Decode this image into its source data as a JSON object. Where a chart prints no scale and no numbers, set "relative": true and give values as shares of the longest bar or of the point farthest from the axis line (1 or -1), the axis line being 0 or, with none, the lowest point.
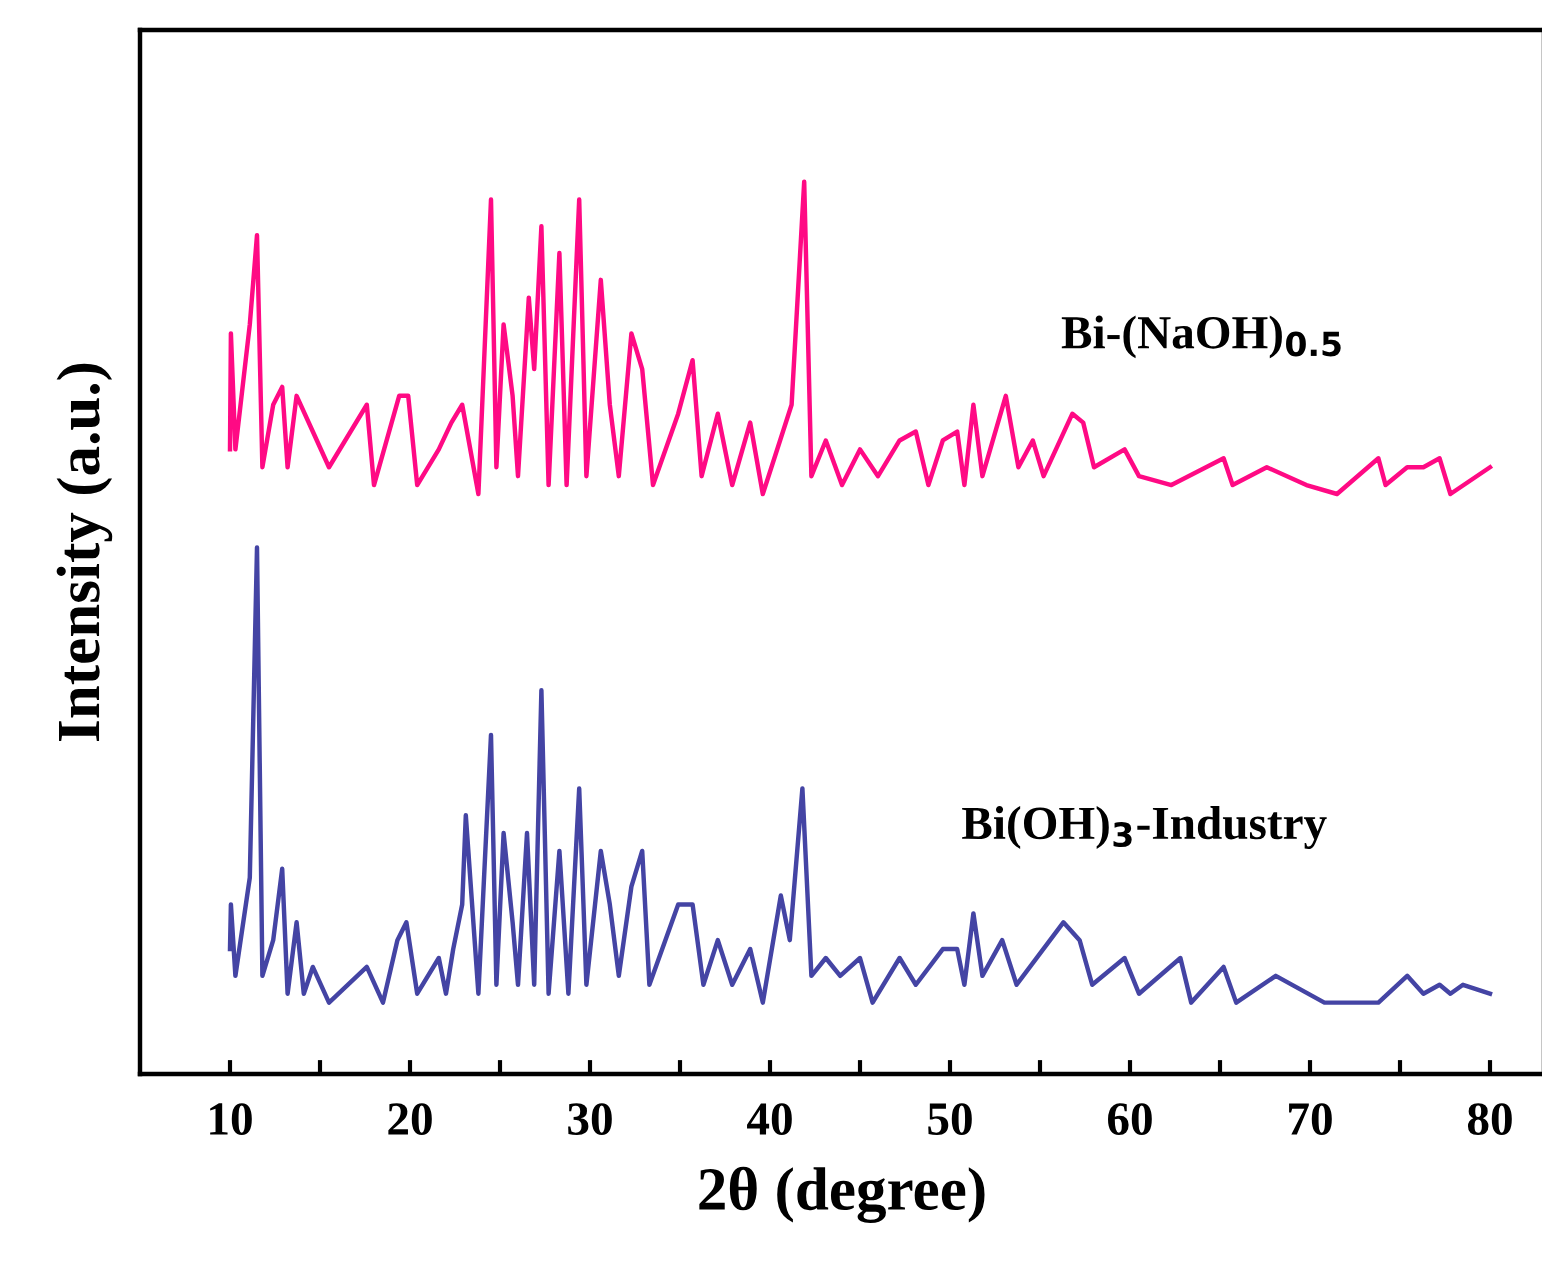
{
  "chart_data": {
    "type": "line",
    "relative": true,
    "xlabel": "2θ (degree)",
    "ylabel": "Intensity (a.u.)",
    "xlim": [
      5,
      83
    ],
    "xticks": [
      10,
      {
        "value": 15,
        "label": null
      },
      20,
      {
        "value": 25,
        "label": null
      },
      30,
      {
        "value": 35,
        "label": null
      },
      40,
      {
        "value": 45,
        "label": null
      },
      50,
      {
        "value": 55,
        "label": null
      },
      60,
      {
        "value": 65,
        "label": null
      },
      70,
      {
        "value": 75,
        "label": null
      },
      80
    ],
    "grid": false,
    "legend": false,
    "marker": "none",
    "line_style": "solid",
    "series": [
      {
        "name": "Bi-(NaOH)$_{0.5}$",
        "color": "#ff0a84",
        "x": [
          10.0,
          10.05,
          10.3,
          11.1,
          11.5,
          11.8,
          12.4,
          12.9,
          13.2,
          13.7,
          14.6,
          15.5,
          17.6,
          18.0,
          19.4,
          19.9,
          20.4,
          21.6,
          22.3,
          22.9,
          23.8,
          24.5,
          24.8,
          25.2,
          25.7,
          26.0,
          26.6,
          26.9,
          27.3,
          27.7,
          28.3,
          28.7,
          29.4,
          29.8,
          30.6,
          31.1,
          31.6,
          32.3,
          32.9,
          33.5,
          34.9,
          35.7,
          36.2,
          37.1,
          37.9,
          38.9,
          39.6,
          41.2,
          41.9,
          42.3,
          43.1,
          44.0,
          45.0,
          46.0,
          47.2,
          48.1,
          48.8,
          49.6,
          50.4,
          50.8,
          51.3,
          51.8,
          53.1,
          53.8,
          54.6,
          55.2,
          56.8,
          57.4,
          58.0,
          59.7,
          60.5,
          62.3,
          65.2,
          65.7,
          67.6,
          69.8,
          71.5,
          73.8,
          74.2,
          75.4,
          76.3,
          77.2,
          77.8,
          80.0
        ],
        "values": [
          0.7,
          0.83,
          0.7,
          0.84,
          0.94,
          0.68,
          0.75,
          0.77,
          0.68,
          0.76,
          0.72,
          0.68,
          0.75,
          0.66,
          0.76,
          0.76,
          0.66,
          0.7,
          0.73,
          0.75,
          0.65,
          0.98,
          0.68,
          0.84,
          0.76,
          0.67,
          0.87,
          0.79,
          0.95,
          0.66,
          0.92,
          0.66,
          0.98,
          0.67,
          0.89,
          0.75,
          0.67,
          0.83,
          0.79,
          0.66,
          0.74,
          0.8,
          0.67,
          0.74,
          0.66,
          0.73,
          0.65,
          0.75,
          1.0,
          0.67,
          0.71,
          0.66,
          0.7,
          0.67,
          0.71,
          0.72,
          0.66,
          0.71,
          0.72,
          0.66,
          0.75,
          0.67,
          0.76,
          0.68,
          0.71,
          0.67,
          0.74,
          0.73,
          0.68,
          0.7,
          0.67,
          0.66,
          0.69,
          0.66,
          0.68,
          0.66,
          0.65,
          0.69,
          0.66,
          0.68,
          0.68,
          0.69,
          0.65,
          0.68
        ]
      },
      {
        "name": "Bi(OH)$_{3}$-Industry",
        "color": "#4444a4",
        "x": [
          10.0,
          10.05,
          10.3,
          11.1,
          11.5,
          11.8,
          12.4,
          12.9,
          13.2,
          13.7,
          14.1,
          14.6,
          15.5,
          17.6,
          18.5,
          19.3,
          19.8,
          20.4,
          21.6,
          22.0,
          22.4,
          22.9,
          23.1,
          23.8,
          24.5,
          24.8,
          25.2,
          25.7,
          26.0,
          26.5,
          26.9,
          27.3,
          27.7,
          28.3,
          28.8,
          29.4,
          29.8,
          30.6,
          31.1,
          31.6,
          32.3,
          32.9,
          33.3,
          34.9,
          35.7,
          36.3,
          37.1,
          37.9,
          38.9,
          39.6,
          40.6,
          41.1,
          41.8,
          42.3,
          43.1,
          43.9,
          45.0,
          45.7,
          47.2,
          48.1,
          49.6,
          50.4,
          50.8,
          51.3,
          51.8,
          52.9,
          53.7,
          56.3,
          57.2,
          57.9,
          59.7,
          60.5,
          62.8,
          63.4,
          65.2,
          65.9,
          68.1,
          70.8,
          73.8,
          75.4,
          76.3,
          77.2,
          77.8,
          78.5,
          80.0
        ],
        "values": [
          0.14,
          0.19,
          0.11,
          0.22,
          0.59,
          0.11,
          0.15,
          0.23,
          0.09,
          0.17,
          0.09,
          0.12,
          0.08,
          0.12,
          0.08,
          0.15,
          0.17,
          0.09,
          0.13,
          0.09,
          0.14,
          0.19,
          0.29,
          0.09,
          0.38,
          0.1,
          0.27,
          0.17,
          0.1,
          0.27,
          0.1,
          0.43,
          0.09,
          0.25,
          0.09,
          0.32,
          0.1,
          0.25,
          0.19,
          0.11,
          0.21,
          0.25,
          0.1,
          0.19,
          0.19,
          0.1,
          0.15,
          0.1,
          0.14,
          0.08,
          0.2,
          0.15,
          0.32,
          0.11,
          0.13,
          0.11,
          0.13,
          0.08,
          0.13,
          0.1,
          0.14,
          0.14,
          0.1,
          0.18,
          0.11,
          0.15,
          0.1,
          0.17,
          0.15,
          0.1,
          0.13,
          0.09,
          0.13,
          0.08,
          0.12,
          0.08,
          0.11,
          0.08,
          0.08,
          0.11,
          0.09,
          0.1,
          0.09,
          0.1,
          0.09
        ]
      }
    ]
  }
}
